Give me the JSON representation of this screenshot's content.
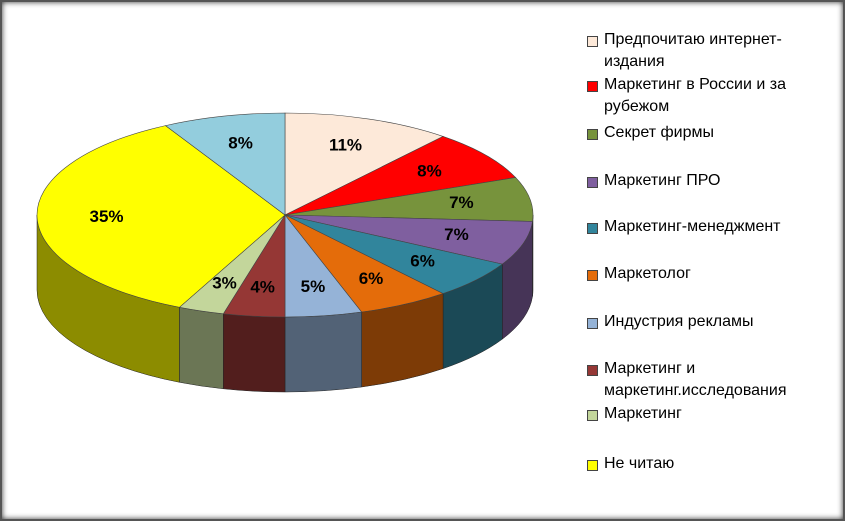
{
  "chart_data": {
    "type": "pie3d",
    "categories": [
      "Предпочитаю интернет-издания",
      "Маркетинг в России и за рубежом",
      "Секрет фирмы",
      "Маркетинг ПРО",
      "Маркетинг-менеджмент",
      "Маркетолог",
      "Индустрия рекламы",
      "Маркетинг и маркетинг.исследования",
      "Маркетинг",
      "Не читаю",
      null
    ],
    "values": [
      11,
      8,
      7,
      7,
      6,
      6,
      5,
      4,
      3,
      35,
      8
    ],
    "value_labels": [
      "11%",
      "8%",
      "7%",
      "7%",
      "6%",
      "6%",
      "5%",
      "4%",
      "3%",
      "35%",
      "8%"
    ],
    "colors": [
      "#fde9d9",
      "#ff0000",
      "#77933c",
      "#7f5f9f",
      "#31859c",
      "#e46c0a",
      "#95b3d7",
      "#953735",
      "#c3d69b",
      "#ffff00",
      "#93cddd"
    ],
    "legend": "right"
  }
}
